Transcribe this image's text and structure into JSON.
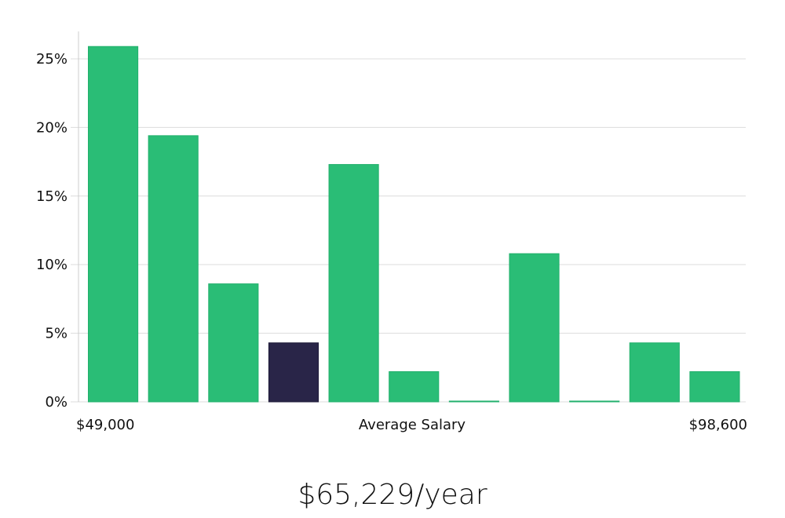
{
  "chart_data": {
    "type": "bar",
    "title": "",
    "xlabel": "Average Salary",
    "ylabel": "",
    "x_min_label": "$49,000",
    "x_max_label": "$98,600",
    "categories": [
      "",
      "",
      "",
      "",
      "",
      "",
      "",
      "",
      "",
      "",
      ""
    ],
    "values": [
      25.9,
      19.4,
      8.6,
      4.3,
      17.3,
      2.2,
      0.0,
      10.8,
      0.0,
      4.3,
      2.2
    ],
    "highlight_index": 3,
    "ylim": [
      0,
      27
    ],
    "yticks": [
      0,
      5,
      10,
      15,
      20,
      25
    ],
    "ytick_labels": [
      "0%",
      "5%",
      "10%",
      "15%",
      "20%",
      "25%"
    ],
    "grid": true,
    "colors": {
      "bar": "#2abd76",
      "bar_stroke": "#22b06c",
      "highlight": "#292548",
      "highlight_stroke": "#1d1a38"
    }
  },
  "summary": {
    "salary_text": "$65,229/year"
  }
}
